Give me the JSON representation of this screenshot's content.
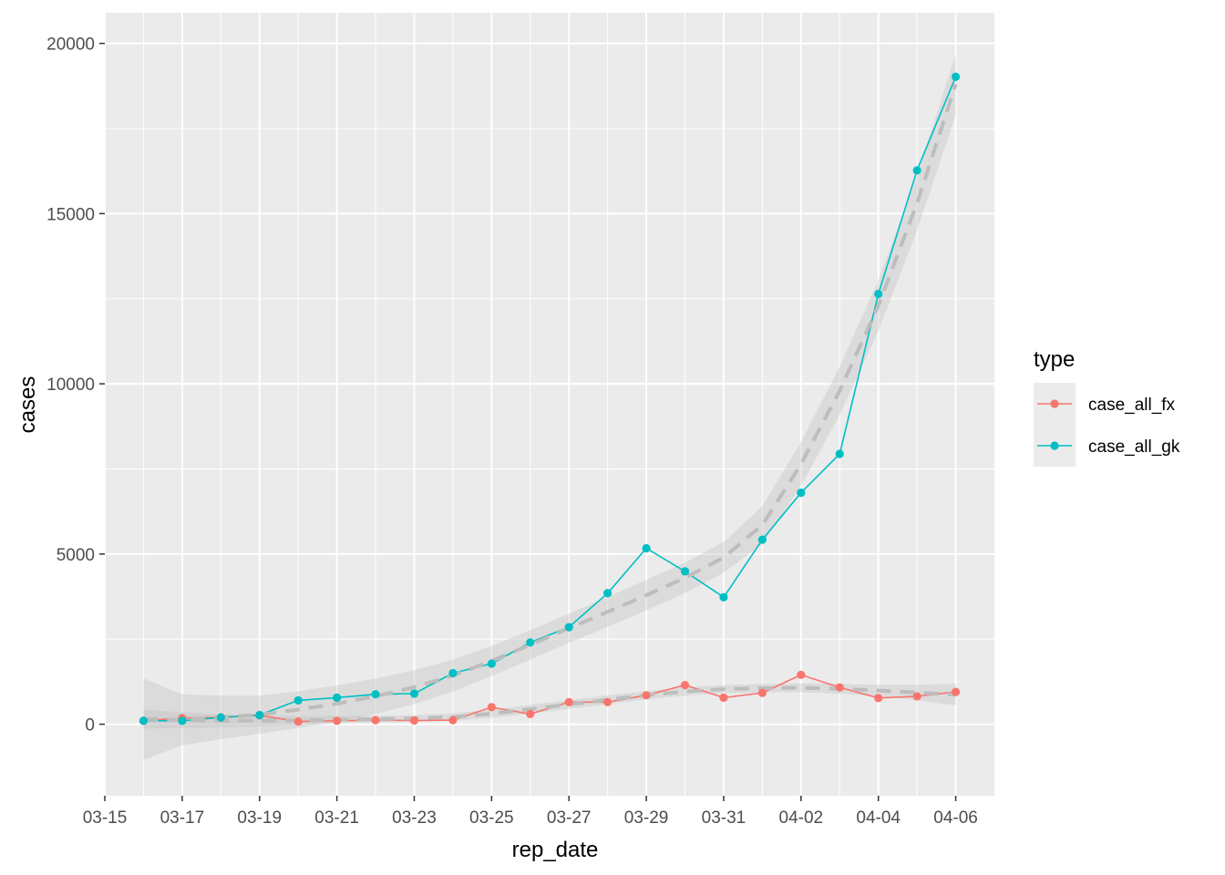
{
  "chart_data": {
    "type": "line",
    "xlabel": "rep_date",
    "ylabel": "cases",
    "x_ticks": [
      "03-15",
      "03-17",
      "03-19",
      "03-21",
      "03-23",
      "03-25",
      "03-27",
      "03-29",
      "03-31",
      "04-02",
      "04-04",
      "04-06"
    ],
    "y_ticks": [
      "0",
      "5000",
      "10000",
      "15000",
      "20000"
    ],
    "ylim": [
      -2100,
      20900
    ],
    "xlim": [
      "03-15",
      "04-07"
    ],
    "grid": true,
    "legend": {
      "title": "type",
      "position": "right"
    },
    "x": [
      "03-16",
      "03-17",
      "03-18",
      "03-19",
      "03-20",
      "03-21",
      "03-22",
      "03-23",
      "03-24",
      "03-25",
      "03-26",
      "03-27",
      "03-28",
      "03-29",
      "03-30",
      "03-31",
      "04-01",
      "04-02",
      "04-03",
      "04-04",
      "04-05",
      "04-06"
    ],
    "series": [
      {
        "name": "case_all_fx",
        "color": "#F8766D",
        "values": [
          100,
          180,
          200,
          260,
          80,
          100,
          120,
          110,
          120,
          500,
          300,
          650,
          650,
          850,
          1150,
          780,
          920,
          1450,
          1080,
          770,
          820,
          950
        ],
        "smooth": [
          150,
          120,
          100,
          100,
          110,
          130,
          150,
          170,
          210,
          310,
          440,
          580,
          720,
          850,
          960,
          1030,
          1060,
          1070,
          1040,
          990,
          930,
          870
        ],
        "smooth_se": [
          280,
          230,
          190,
          160,
          130,
          110,
          100,
          100,
          110,
          120,
          130,
          130,
          130,
          120,
          120,
          120,
          120,
          130,
          150,
          170,
          230,
          320
        ]
      },
      {
        "name": "case_all_gk",
        "color": "#00BFC4",
        "values": [
          100,
          100,
          200,
          270,
          700,
          780,
          880,
          900,
          1500,
          1780,
          2400,
          2850,
          3850,
          5170,
          4490,
          3730,
          5420,
          6800,
          7940,
          12640,
          16270,
          19020
        ],
        "smooth": [
          150,
          130,
          200,
          280,
          430,
          600,
          820,
          1090,
          1430,
          1860,
          2330,
          2820,
          3300,
          3790,
          4300,
          4900,
          5850,
          7640,
          9800,
          12300,
          15300,
          18800
        ],
        "smooth_se": [
          1200,
          750,
          640,
          560,
          540,
          540,
          520,
          500,
          470,
          440,
          430,
          430,
          440,
          450,
          450,
          450,
          560,
          650,
          700,
          750,
          800,
          900
        ]
      }
    ]
  }
}
